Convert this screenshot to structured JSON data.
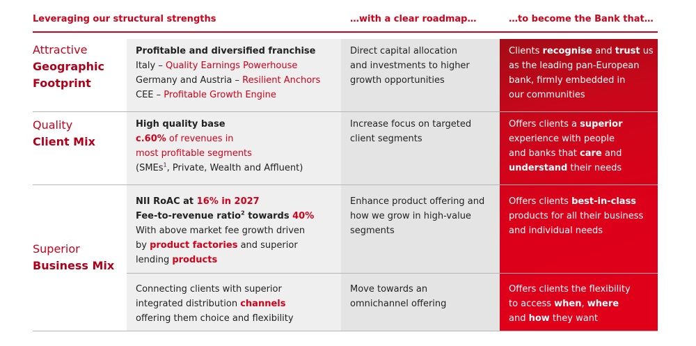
{
  "header": [
    "Leveraging our structural strengths",
    "…with a clear roadmap…",
    "…to become the Bank that…"
  ],
  "rows": [
    {
      "label": [
        "Attractive",
        "Geographic",
        "Footprint"
      ],
      "strengths": {
        "title": "Profitable and diversified franchise",
        "lines": [
          [
            "Italy – ",
            "Quality Earnings Powerhouse"
          ],
          [
            "Germany and Austria – ",
            "Resilient Anchors"
          ],
          [
            "CEE – ",
            "Profitable Growth Engine"
          ]
        ]
      },
      "roadmap": [
        "Direct capital allocation",
        "and investments to higher",
        "growth opportunities"
      ],
      "bank": [
        [
          "Clients ",
          "recognise",
          " and ",
          "trust",
          " us"
        ],
        [
          "as the leading pan-European"
        ],
        [
          "bank, firmly embedded in"
        ],
        [
          "our communities"
        ]
      ]
    },
    {
      "label": [
        "Quality",
        "Client Mix"
      ],
      "strengths": {
        "title": "High quality base",
        "lines": [
          [
            "c.60%",
            " of revenues in"
          ],
          [
            "most profitable segments"
          ],
          [
            "(SMEs",
            "1",
            ", Private, Wealth and Affluent)"
          ]
        ]
      },
      "roadmap": [
        "Increase focus on targeted",
        "client segments"
      ],
      "bank": [
        [
          "Offers clients a ",
          "superior"
        ],
        [
          "experience with people"
        ],
        [
          "and banks that ",
          "care",
          " and"
        ],
        [
          "understand",
          " their needs"
        ]
      ]
    },
    {
      "label": [
        "Superior",
        "Business Mix"
      ],
      "parts": [
        {
          "strengths": [
            [
              "NII RoAC at ",
              "16% in 2027"
            ],
            [
              "Fee-to-revenue ratio",
              "2",
              " towards ",
              "40%"
            ],
            [
              "With above market fee growth driven"
            ],
            [
              "by ",
              "product factories",
              " and superior"
            ],
            [
              "lending ",
              "products"
            ]
          ],
          "roadmap": [
            "Enhance product offering and",
            "how we grow in high-value",
            "segments"
          ],
          "bank": [
            [
              "Offers clients ",
              "best-in-class"
            ],
            [
              "products for all their business"
            ],
            [
              "and individual needs"
            ]
          ]
        },
        {
          "strengths": [
            [
              "Connecting clients with superior"
            ],
            [
              "integrated distribution ",
              "channels"
            ],
            [
              "offering them choice and flexibility"
            ]
          ],
          "roadmap": [
            "Move towards an",
            "omnichannel offering"
          ],
          "bank": [
            [
              "Offers clients the flexibility"
            ],
            [
              "to access ",
              "when",
              ", ",
              "where"
            ],
            [
              "and ",
              "how",
              " they want"
            ]
          ]
        }
      ]
    }
  ]
}
